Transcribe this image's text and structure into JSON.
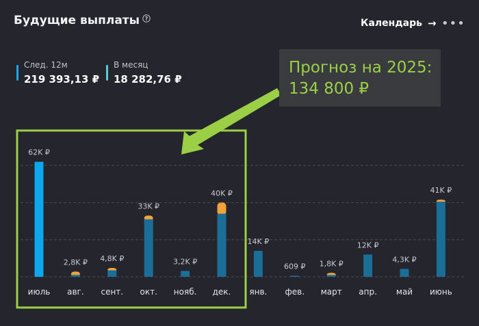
{
  "header": {
    "title": "Будущие выплаты",
    "calendar_label": "Календарь",
    "icons": {
      "help": "help-circle-icon",
      "arrow": "arrow-right-icon",
      "more": "more-horizontal-icon"
    }
  },
  "stats": [
    {
      "label": "След. 12м",
      "value": "219 393,13 ₽",
      "color": "#1ba7f0"
    },
    {
      "label": "В месяц",
      "value": "18 282,76 ₽",
      "color": "#5cc9d8"
    }
  ],
  "annotation": {
    "line1": "Прогноз на 2025:",
    "line2": "134 800 ₽",
    "color": "#9bd046"
  },
  "chart_data": {
    "type": "bar",
    "categories": [
      "июль",
      "авг.",
      "сент.",
      "окт.",
      "нояб.",
      "дек.",
      "янв.",
      "фев.",
      "март",
      "апр.",
      "май",
      "июнь"
    ],
    "data_labels": [
      "62K ₽",
      "2,8K ₽",
      "4,8K ₽",
      "33K ₽",
      "3,2K ₽",
      "40K ₽",
      "14K ₽",
      "609 ₽",
      "1,8K ₽",
      "12K ₽",
      "4,3K ₽",
      "41K ₽"
    ],
    "series": [
      {
        "values": [
          62000,
          1000,
          3500,
          31000,
          3200,
          34000,
          14000,
          609,
          1000,
          12000,
          4300,
          40500
        ]
      },
      {
        "values": [
          0,
          1800,
          1300,
          2000,
          0,
          6000,
          0,
          0,
          800,
          0,
          0,
          500
        ]
      }
    ],
    "colors": {
      "first_bar": "#0ba8ee",
      "primary": "#1a6e98",
      "secondary": "#f2a33a"
    },
    "ylim": [
      0,
      70000
    ],
    "grid": true
  }
}
